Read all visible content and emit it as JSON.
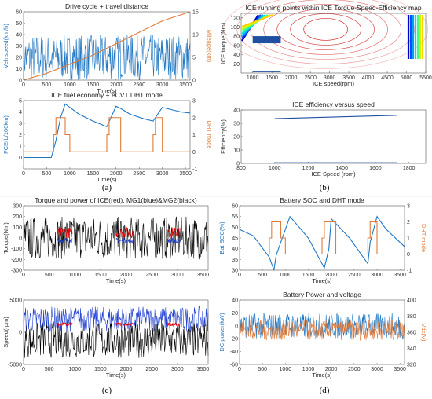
{
  "colors": {
    "blue": "#1f77c4",
    "orange": "#e07b39",
    "red": "#e00000",
    "black": "#000000",
    "green": "#2ca02c",
    "dark_blue": "#1f4fa0"
  },
  "captions": [
    "(a)",
    "(b)",
    "(c)",
    "(d)"
  ],
  "chart_data": [
    {
      "id": "a1",
      "type": "line",
      "title": "Drive cycle + travel distance",
      "xlabel": "Time(s)",
      "ylabel": "Veh speed(km/h)",
      "y2label": "Mileage(km)",
      "xlim": [
        0,
        3600
      ],
      "ylim": [
        0,
        60
      ],
      "y2lim": [
        0,
        15
      ],
      "xticks": [
        0,
        500,
        1000,
        1500,
        2000,
        2500,
        3000,
        3500
      ],
      "yticks": [
        0,
        10,
        20,
        30,
        40,
        50,
        60
      ],
      "y2ticks": [
        0,
        5,
        10,
        15
      ],
      "series": [
        {
          "axis": "left",
          "color": "#1f77c4",
          "pattern": "noise",
          "x": [
            0,
            3600
          ],
          "y": [
            0,
            40
          ]
        },
        {
          "axis": "right",
          "color": "#e07b39",
          "x": [
            0,
            500,
            1000,
            1500,
            2000,
            2500,
            3000,
            3600
          ],
          "y": [
            0,
            1.5,
            3.5,
            5.5,
            8,
            10.5,
            13,
            15
          ]
        }
      ]
    },
    {
      "id": "a2",
      "type": "line",
      "title": "ICE fuel economy + eCVT DHT mode",
      "xlabel": "Time(s)",
      "ylabel": "FCE(L/100km)",
      "y2label": "DHT mode",
      "xlim": [
        0,
        3600
      ],
      "ylim": [
        -1,
        5
      ],
      "y2lim": [
        -1,
        3
      ],
      "xticks": [
        0,
        500,
        1000,
        1500,
        2000,
        2500,
        3000,
        3500
      ],
      "yticks": [
        0,
        1,
        2,
        3,
        4,
        5
      ],
      "y2ticks": [
        -1,
        0,
        1,
        2,
        3
      ],
      "series": [
        {
          "axis": "left",
          "color": "#1f77c4",
          "x": [
            0,
            600,
            700,
            800,
            900,
            1000,
            1200,
            1500,
            1800,
            1900,
            2000,
            2100,
            2300,
            2600,
            2800,
            2900,
            3000,
            3200,
            3400,
            3600
          ],
          "y": [
            0,
            0,
            1.5,
            3.5,
            4.7,
            4.4,
            3.8,
            3.2,
            2.7,
            3.6,
            4.5,
            4.3,
            3.8,
            3.4,
            3.2,
            3.8,
            4.4,
            4.2,
            4.0,
            3.9
          ]
        },
        {
          "axis": "right",
          "color": "#e07b39",
          "pattern": "mode",
          "x": [
            0,
            3600
          ],
          "y": [
            0,
            2
          ]
        }
      ]
    },
    {
      "id": "b1",
      "type": "heatmap",
      "title": "ICE running points within ICE Torque-Speed-Efficiency map",
      "xlabel": "ICE speed(rpm)",
      "ylabel": "ICE torque(Nm)",
      "xlim": [
        700,
        5500
      ],
      "ylim": [
        0,
        130
      ],
      "xticks": [
        1000,
        1500,
        2000,
        2500,
        3000,
        3500,
        4000,
        4500,
        5000,
        5500
      ],
      "yticks": [
        20,
        40,
        60,
        80,
        100,
        120
      ]
    },
    {
      "id": "b2",
      "type": "line",
      "title": "ICE efficiency versus speed",
      "xlabel": "ICE Speed (rpm)",
      "ylabel": "Efficiency(%)",
      "xlim": [
        800,
        1900
      ],
      "ylim": [
        0,
        40
      ],
      "xticks": [
        800,
        1000,
        1200,
        1400,
        1600,
        1800
      ],
      "yticks": [
        0,
        10,
        20,
        30,
        40
      ],
      "series": [
        {
          "color": "#1f4fa0",
          "x": [
            1000,
            1730
          ],
          "y": [
            33.5,
            36
          ]
        },
        {
          "color": "#1f4fa0",
          "x": [
            1000,
            1730
          ],
          "y": [
            0.5,
            0.5
          ]
        }
      ]
    },
    {
      "id": "c1",
      "type": "line",
      "title": "Torque and power of ICE(red), MG1(blue)&MG2(black)",
      "xlabel": "Time(s)",
      "ylabel": "Torque(Nm)",
      "xlim": [
        0,
        3600
      ],
      "ylim": [
        -300,
        300
      ],
      "xticks": [
        0,
        500,
        1000,
        1500,
        2000,
        2500,
        3000,
        3500
      ],
      "yticks": [
        -300,
        -200,
        -100,
        0,
        100,
        200,
        300
      ],
      "series": [
        {
          "name": "MG2",
          "color": "#000000",
          "pattern": "noise",
          "x": [
            0,
            3600
          ],
          "y": [
            -200,
            200
          ]
        },
        {
          "name": "ICE",
          "color": "#e00000",
          "pattern": "bursts",
          "x": [
            0,
            3600
          ],
          "y": [
            0,
            100
          ]
        },
        {
          "name": "MG1",
          "color": "#1f3fd0",
          "pattern": "bursts",
          "x": [
            0,
            3600
          ],
          "y": [
            -50,
            0
          ]
        }
      ]
    },
    {
      "id": "c2",
      "type": "line",
      "title": "",
      "xlabel": "Time(s)",
      "ylabel": "Speed(rpm)",
      "xlim": [
        0,
        3600
      ],
      "ylim": [
        -5000,
        5000
      ],
      "xticks": [
        0,
        500,
        1000,
        1500,
        2000,
        2500,
        3000,
        3500
      ],
      "yticks": [
        -5000,
        0,
        5000
      ],
      "series": [
        {
          "name": "MG1",
          "color": "#1f3fd0",
          "pattern": "noise",
          "x": [
            0,
            3600
          ],
          "y": [
            0,
            4000
          ]
        },
        {
          "name": "MG2",
          "color": "#000000",
          "pattern": "noise",
          "x": [
            0,
            3600
          ],
          "y": [
            -4000,
            1500
          ]
        },
        {
          "name": "ICE",
          "color": "#e00000",
          "pattern": "bursts",
          "x": [
            0,
            3600
          ],
          "y": [
            1000,
            1500
          ]
        }
      ]
    },
    {
      "id": "d1",
      "type": "line",
      "title": "Battery SOC and DHT mode",
      "xlabel": "Time(s)",
      "ylabel": "Bat SOC(%)",
      "y2label": "DHT mode",
      "xlim": [
        0,
        3600
      ],
      "ylim": [
        30,
        60
      ],
      "y2lim": [
        -1,
        3
      ],
      "xticks": [
        0,
        500,
        1000,
        1500,
        2000,
        2500,
        3000,
        3500
      ],
      "yticks": [
        30,
        35,
        40,
        45,
        50,
        55,
        60
      ],
      "y2ticks": [
        -1,
        0,
        1,
        2,
        3
      ],
      "series": [
        {
          "axis": "left",
          "color": "#1f77c4",
          "x": [
            0,
            300,
            650,
            750,
            800,
            1100,
            1500,
            1850,
            1950,
            2000,
            2400,
            2800,
            2850,
            3000,
            3200,
            3600
          ],
          "y": [
            49,
            46,
            36,
            30,
            37,
            55,
            45,
            31,
            40,
            54,
            45,
            33,
            43,
            55,
            49,
            41
          ]
        },
        {
          "axis": "right",
          "color": "#e07b39",
          "pattern": "mode",
          "x": [
            0,
            3600
          ],
          "y": [
            0,
            2
          ]
        }
      ]
    },
    {
      "id": "d2",
      "type": "line",
      "title": "Battery Power and voltage",
      "xlabel": "Time(s)",
      "ylabel": "DC power(kW)",
      "y2label": "Vdc(V)",
      "xlim": [
        0,
        3600
      ],
      "ylim": [
        -60,
        40
      ],
      "y2lim": [
        320,
        400
      ],
      "xticks": [
        0,
        500,
        1000,
        1500,
        2000,
        2500,
        3000,
        3500
      ],
      "yticks": [
        -60,
        -40,
        -20,
        0,
        20,
        40
      ],
      "y2ticks": [
        320,
        340,
        360,
        380,
        400
      ],
      "series": [
        {
          "axis": "left",
          "color": "#1f77c4",
          "pattern": "noise",
          "x": [
            0,
            3600
          ],
          "y": [
            -20,
            20
          ]
        },
        {
          "axis": "right",
          "color": "#e07b39",
          "pattern": "noise",
          "x": [
            0,
            3600
          ],
          "y": [
            350,
            375
          ]
        }
      ]
    }
  ]
}
